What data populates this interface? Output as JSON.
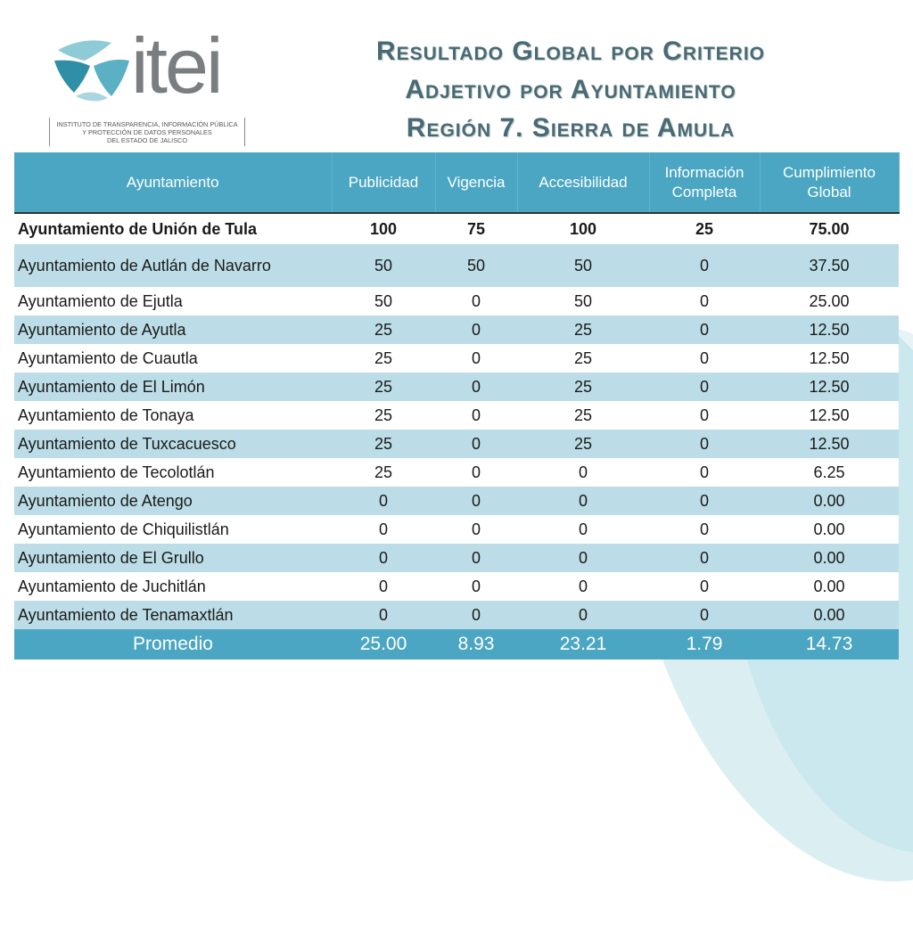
{
  "logo": {
    "wordmark": "itei",
    "caption_lines": [
      "INSTITUTO DE TRANSPARENCIA, INFORMACIÓN PÚBLICA",
      "Y PROTECCIÓN DE DATOS PERSONALES",
      "DEL ESTADO DE JALISCO"
    ],
    "colors": {
      "teal": "#2f8fa6",
      "light_teal": "#8fcad7",
      "gray": "#7b7e80"
    }
  },
  "title": {
    "lines": [
      "Resultado Global por Criterio",
      "Adjetivo por Ayuntamiento",
      "Región 7. Sierra de Amula"
    ]
  },
  "table": {
    "headers": [
      "Ayuntamiento",
      "Publicidad",
      "Vigencia",
      "Accesibilidad",
      "Información Completa",
      "Cumplimiento Global"
    ],
    "rows": [
      [
        "Ayuntamiento de Unión de Tula",
        "100",
        "75",
        "100",
        "25",
        "75.00"
      ],
      [
        "Ayuntamiento de Autlán de Navarro",
        "50",
        "50",
        "50",
        "0",
        "37.50"
      ],
      [
        "Ayuntamiento de Ejutla",
        "50",
        "0",
        "50",
        "0",
        "25.00"
      ],
      [
        "Ayuntamiento de Ayutla",
        "25",
        "0",
        "25",
        "0",
        "12.50"
      ],
      [
        "Ayuntamiento de Cuautla",
        "25",
        "0",
        "25",
        "0",
        "12.50"
      ],
      [
        "Ayuntamiento de El Limón",
        "25",
        "0",
        "25",
        "0",
        "12.50"
      ],
      [
        "Ayuntamiento de Tonaya",
        "25",
        "0",
        "25",
        "0",
        "12.50"
      ],
      [
        "Ayuntamiento de Tuxcacuesco",
        "25",
        "0",
        "25",
        "0",
        "12.50"
      ],
      [
        "Ayuntamiento de Tecolotlán",
        "25",
        "0",
        "0",
        "0",
        "6.25"
      ],
      [
        "Ayuntamiento de Atengo",
        "0",
        "0",
        "0",
        "0",
        "0.00"
      ],
      [
        "Ayuntamiento de Chiquilistlán",
        "0",
        "0",
        "0",
        "0",
        "0.00"
      ],
      [
        "Ayuntamiento de El Grullo",
        "0",
        "0",
        "0",
        "0",
        "0.00"
      ],
      [
        "Ayuntamiento de Juchitlán",
        "0",
        "0",
        "0",
        "0",
        "0.00"
      ],
      [
        "Ayuntamiento de Tenamaxtlán",
        "0",
        "0",
        "0",
        "0",
        "0.00"
      ]
    ],
    "total": [
      "Promedio",
      "25.00",
      "8.93",
      "23.21",
      "1.79",
      "14.73"
    ],
    "colors": {
      "header": "#4ba6c3",
      "stripe": "#bcdde7"
    }
  }
}
